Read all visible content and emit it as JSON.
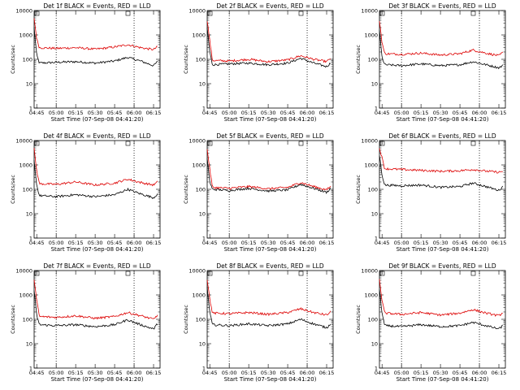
{
  "y_axis_label": "Counts/sec",
  "x_axis_label": "Start Time (07-Sep-08 04:41:20)",
  "x_tick_labels": [
    "04:45",
    "05:00",
    "05:15",
    "05:30",
    "05:45",
    "06:00",
    "06:15"
  ],
  "y_tick_labels": [
    "1",
    "10",
    "100",
    "1000",
    "10000"
  ],
  "colors": {
    "events": "#000000",
    "lld": "#dd0000",
    "axes": "#000000"
  },
  "chart_data": [
    {
      "type": "line",
      "title": "Det 1f BLACK = Events, RED = LLD",
      "x": [
        "04:43",
        "04:45",
        "04:47",
        "05:00",
        "05:15",
        "05:30",
        "05:45",
        "05:55",
        "06:05",
        "06:15",
        "06:18"
      ],
      "series": [
        {
          "name": "Events",
          "values": [
            2000,
            150,
            70,
            75,
            80,
            70,
            85,
            120,
            85,
            55,
            80
          ]
        },
        {
          "name": "LLD",
          "values": [
            5000,
            700,
            300,
            280,
            300,
            260,
            320,
            400,
            300,
            250,
            330
          ]
        }
      ],
      "ylim": [
        1,
        10000
      ],
      "yscale": "log",
      "x_markers": [
        "05:00",
        "06:00"
      ]
    },
    {
      "type": "line",
      "title": "Det 2f BLACK = Events, RED = LLD",
      "x": [
        "04:43",
        "04:45",
        "04:47",
        "05:00",
        "05:15",
        "05:30",
        "05:45",
        "05:55",
        "06:05",
        "06:15",
        "06:18"
      ],
      "series": [
        {
          "name": "Events",
          "values": [
            2000,
            200,
            60,
            65,
            70,
            60,
            70,
            110,
            70,
            50,
            70
          ]
        },
        {
          "name": "LLD",
          "values": [
            4000,
            600,
            90,
            85,
            100,
            80,
            95,
            140,
            100,
            80,
            110
          ]
        }
      ],
      "ylim": [
        1,
        10000
      ],
      "yscale": "log",
      "x_markers": [
        "05:00",
        "06:00"
      ]
    },
    {
      "type": "line",
      "title": "Det 3f BLACK = Events, RED = LLD",
      "x": [
        "04:43",
        "04:45",
        "04:47",
        "05:00",
        "05:15",
        "05:30",
        "05:45",
        "05:55",
        "06:05",
        "06:15",
        "06:18"
      ],
      "series": [
        {
          "name": "Events",
          "values": [
            1500,
            120,
            60,
            55,
            65,
            55,
            60,
            80,
            60,
            45,
            55
          ]
        },
        {
          "name": "LLD",
          "values": [
            4000,
            500,
            170,
            160,
            180,
            150,
            170,
            240,
            180,
            140,
            190
          ]
        }
      ],
      "ylim": [
        1,
        10000
      ],
      "yscale": "log",
      "x_markers": [
        "05:00",
        "06:00"
      ]
    },
    {
      "type": "line",
      "title": "Det 4f BLACK = Events, RED = LLD",
      "x": [
        "04:43",
        "04:45",
        "04:47",
        "05:00",
        "05:15",
        "05:30",
        "05:45",
        "05:55",
        "06:05",
        "06:15",
        "06:18"
      ],
      "series": [
        {
          "name": "Events",
          "values": [
            1500,
            150,
            55,
            50,
            60,
            50,
            60,
            100,
            65,
            45,
            65
          ]
        },
        {
          "name": "LLD",
          "values": [
            4500,
            600,
            170,
            160,
            200,
            150,
            180,
            260,
            190,
            150,
            200
          ]
        }
      ],
      "ylim": [
        1,
        10000
      ],
      "yscale": "log",
      "x_markers": [
        "05:00",
        "06:00"
      ]
    },
    {
      "type": "line",
      "title": "Det 5f BLACK = Events, RED = LLD",
      "x": [
        "04:43",
        "04:45",
        "04:47",
        "05:00",
        "05:15",
        "05:30",
        "05:45",
        "05:55",
        "06:05",
        "06:15",
        "06:18"
      ],
      "series": [
        {
          "name": "Events",
          "values": [
            2000,
            200,
            100,
            90,
            110,
            85,
            95,
            160,
            110,
            75,
            110
          ]
        },
        {
          "name": "LLD",
          "values": [
            4500,
            700,
            120,
            110,
            130,
            105,
            120,
            190,
            130,
            95,
            130
          ]
        }
      ],
      "ylim": [
        1,
        10000
      ],
      "yscale": "log",
      "x_markers": [
        "05:00",
        "06:00"
      ]
    },
    {
      "type": "line",
      "title": "Det 6f BLACK = Events, RED = LLD",
      "x": [
        "04:43",
        "04:45",
        "04:47",
        "05:00",
        "05:15",
        "05:30",
        "05:45",
        "05:55",
        "06:05",
        "06:15",
        "06:18"
      ],
      "series": [
        {
          "name": "Events",
          "values": [
            2500,
            400,
            150,
            140,
            150,
            120,
            130,
            180,
            130,
            90,
            130
          ]
        },
        {
          "name": "LLD",
          "values": [
            5000,
            2000,
            700,
            650,
            600,
            550,
            580,
            650,
            560,
            500,
            550
          ]
        }
      ],
      "ylim": [
        1,
        10000
      ],
      "yscale": "log",
      "x_markers": [
        "05:00",
        "06:00"
      ]
    },
    {
      "type": "line",
      "title": "Det 7f BLACK = Events, RED = LLD",
      "x": [
        "04:43",
        "04:45",
        "04:47",
        "05:00",
        "05:15",
        "05:30",
        "05:45",
        "05:55",
        "06:05",
        "06:15",
        "06:18"
      ],
      "series": [
        {
          "name": "Events",
          "values": [
            1500,
            150,
            60,
            55,
            60,
            50,
            60,
            95,
            60,
            40,
            65
          ]
        },
        {
          "name": "LLD",
          "values": [
            4500,
            600,
            130,
            120,
            140,
            110,
            130,
            190,
            140,
            100,
            150
          ]
        }
      ],
      "ylim": [
        1,
        10000
      ],
      "yscale": "log",
      "x_markers": [
        "05:00",
        "06:00"
      ]
    },
    {
      "type": "line",
      "title": "Det 8f BLACK = Events, RED = LLD",
      "x": [
        "04:43",
        "04:45",
        "04:47",
        "05:00",
        "05:15",
        "05:30",
        "05:45",
        "05:55",
        "06:05",
        "06:15",
        "06:18"
      ],
      "series": [
        {
          "name": "Events",
          "values": [
            2000,
            200,
            60,
            55,
            65,
            55,
            65,
            100,
            65,
            45,
            65
          ]
        },
        {
          "name": "LLD",
          "values": [
            4500,
            700,
            180,
            170,
            190,
            160,
            190,
            270,
            190,
            150,
            200
          ]
        }
      ],
      "ylim": [
        1,
        10000
      ],
      "yscale": "log",
      "x_markers": [
        "05:00",
        "06:00"
      ]
    },
    {
      "type": "line",
      "title": "Det 9f BLACK = Events, RED = LLD",
      "x": [
        "04:43",
        "04:45",
        "04:47",
        "05:00",
        "05:15",
        "05:30",
        "05:45",
        "05:55",
        "06:05",
        "06:15",
        "06:18"
      ],
      "series": [
        {
          "name": "Events",
          "values": [
            1800,
            180,
            55,
            50,
            60,
            50,
            55,
            75,
            55,
            40,
            55
          ]
        },
        {
          "name": "LLD",
          "values": [
            4500,
            600,
            180,
            160,
            190,
            150,
            180,
            250,
            180,
            140,
            190
          ]
        }
      ],
      "ylim": [
        1,
        10000
      ],
      "yscale": "log",
      "x_markers": [
        "05:00",
        "06:00"
      ]
    }
  ]
}
